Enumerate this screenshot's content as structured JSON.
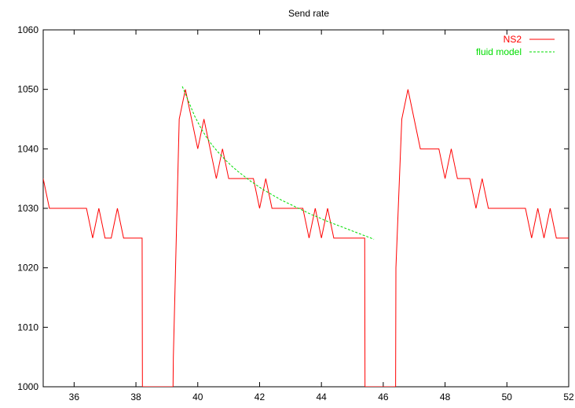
{
  "chart_data": {
    "type": "line",
    "title": "Send rate",
    "xlabel": "",
    "ylabel": "",
    "xlim": [
      35,
      52
    ],
    "ylim": [
      1000,
      1060
    ],
    "x_ticks": [
      36,
      38,
      40,
      42,
      44,
      46,
      48,
      50,
      52
    ],
    "y_ticks": [
      1000,
      1010,
      1020,
      1030,
      1040,
      1050,
      1060
    ],
    "grid": false,
    "legend_position": "top-right",
    "series": [
      {
        "name": "NS2",
        "color": "#ff0000",
        "style": "solid",
        "points": [
          [
            35.0,
            1035
          ],
          [
            35.2,
            1030
          ],
          [
            35.4,
            1030
          ],
          [
            35.6,
            1030
          ],
          [
            35.8,
            1030
          ],
          [
            36.0,
            1030
          ],
          [
            36.2,
            1030
          ],
          [
            36.4,
            1030
          ],
          [
            36.6,
            1025
          ],
          [
            36.8,
            1030
          ],
          [
            37.0,
            1025
          ],
          [
            37.2,
            1025
          ],
          [
            37.4,
            1030
          ],
          [
            37.6,
            1025
          ],
          [
            37.8,
            1025
          ],
          [
            38.0,
            1025
          ],
          [
            38.2,
            1025
          ],
          [
            38.21,
            1000
          ],
          [
            39.2,
            1000
          ],
          [
            39.21,
            1005
          ],
          [
            39.4,
            1045
          ],
          [
            39.6,
            1050
          ],
          [
            39.8,
            1045
          ],
          [
            40.0,
            1040
          ],
          [
            40.2,
            1045
          ],
          [
            40.4,
            1040
          ],
          [
            40.6,
            1035
          ],
          [
            40.8,
            1040
          ],
          [
            41.0,
            1035
          ],
          [
            41.2,
            1035
          ],
          [
            41.4,
            1035
          ],
          [
            41.6,
            1035
          ],
          [
            41.8,
            1035
          ],
          [
            42.0,
            1030
          ],
          [
            42.2,
            1035
          ],
          [
            42.4,
            1030
          ],
          [
            42.6,
            1030
          ],
          [
            42.8,
            1030
          ],
          [
            43.0,
            1030
          ],
          [
            43.2,
            1030
          ],
          [
            43.4,
            1030
          ],
          [
            43.6,
            1025
          ],
          [
            43.8,
            1030
          ],
          [
            44.0,
            1025
          ],
          [
            44.2,
            1030
          ],
          [
            44.4,
            1025
          ],
          [
            44.6,
            1025
          ],
          [
            44.8,
            1025
          ],
          [
            45.0,
            1025
          ],
          [
            45.2,
            1025
          ],
          [
            45.4,
            1025
          ],
          [
            45.41,
            1000
          ],
          [
            46.4,
            1000
          ],
          [
            46.41,
            1020
          ],
          [
            46.6,
            1045
          ],
          [
            46.8,
            1050
          ],
          [
            47.0,
            1045
          ],
          [
            47.2,
            1040
          ],
          [
            47.4,
            1040
          ],
          [
            47.6,
            1040
          ],
          [
            47.8,
            1040
          ],
          [
            48.0,
            1035
          ],
          [
            48.2,
            1040
          ],
          [
            48.4,
            1035
          ],
          [
            48.6,
            1035
          ],
          [
            48.8,
            1035
          ],
          [
            49.0,
            1030
          ],
          [
            49.2,
            1035
          ],
          [
            49.4,
            1030
          ],
          [
            49.6,
            1030
          ],
          [
            49.8,
            1030
          ],
          [
            50.0,
            1030
          ],
          [
            50.2,
            1030
          ],
          [
            50.4,
            1030
          ],
          [
            50.6,
            1030
          ],
          [
            50.8,
            1025
          ],
          [
            51.0,
            1030
          ],
          [
            51.2,
            1025
          ],
          [
            51.4,
            1030
          ],
          [
            51.6,
            1025
          ],
          [
            51.8,
            1025
          ],
          [
            52.0,
            1025
          ]
        ]
      },
      {
        "name": "fluid model",
        "color": "#00dd00",
        "style": "dashed",
        "points": [
          [
            39.5,
            1050.5
          ],
          [
            39.7,
            1048.0
          ],
          [
            39.9,
            1045.5
          ],
          [
            40.1,
            1043.5
          ],
          [
            40.3,
            1041.8
          ],
          [
            40.5,
            1040.4
          ],
          [
            40.7,
            1039.2
          ],
          [
            40.9,
            1038.1
          ],
          [
            41.1,
            1037.1
          ],
          [
            41.3,
            1036.2
          ],
          [
            41.5,
            1035.4
          ],
          [
            41.7,
            1034.6
          ],
          [
            41.9,
            1033.9
          ],
          [
            42.1,
            1033.2
          ],
          [
            42.3,
            1032.6
          ],
          [
            42.5,
            1032.0
          ],
          [
            42.7,
            1031.4
          ],
          [
            42.9,
            1030.9
          ],
          [
            43.1,
            1030.4
          ],
          [
            43.3,
            1029.9
          ],
          [
            43.5,
            1029.4
          ],
          [
            43.7,
            1028.9
          ],
          [
            43.9,
            1028.5
          ],
          [
            44.1,
            1028.0
          ],
          [
            44.3,
            1027.6
          ],
          [
            44.5,
            1027.2
          ],
          [
            44.7,
            1026.8
          ],
          [
            44.9,
            1026.4
          ],
          [
            45.1,
            1026.0
          ],
          [
            45.3,
            1025.6
          ],
          [
            45.5,
            1025.2
          ],
          [
            45.7,
            1024.8
          ]
        ]
      }
    ]
  }
}
